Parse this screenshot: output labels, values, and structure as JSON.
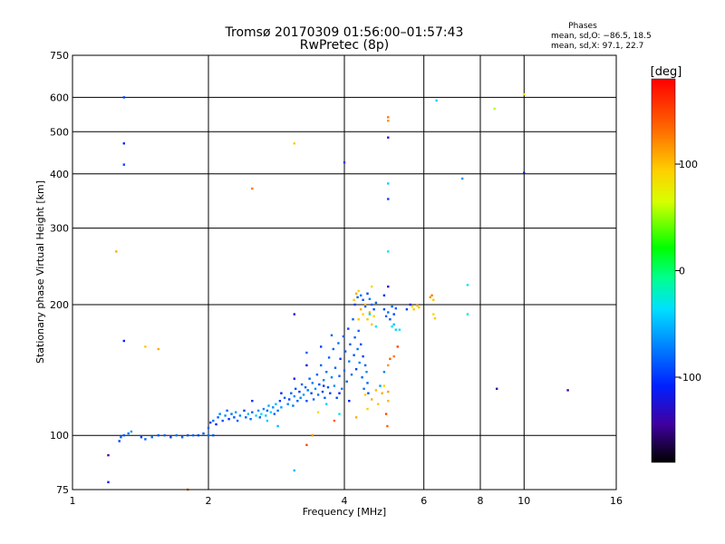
{
  "chart_data": {
    "type": "scatter",
    "title": "Tromsø 20170309 01:56:00–01:57:43",
    "subtitle": "RwPretec (8p)",
    "xlabel": "Frequency [MHz]",
    "ylabel": "Stationary phase Virtual Height [km]",
    "x_scale": "log",
    "y_scale": "log",
    "xlim": [
      1,
      16
    ],
    "ylim": [
      75,
      750
    ],
    "x_ticks": [
      1,
      2,
      4,
      6,
      8,
      10,
      16
    ],
    "x_tick_labels": [
      "1",
      "2",
      "4",
      "6",
      "8",
      "10",
      "16"
    ],
    "y_ticks": [
      75,
      100,
      200,
      300,
      400,
      500,
      600,
      750
    ],
    "y_tick_labels": [
      "75",
      "100",
      "200",
      "300",
      "400",
      "500",
      "600",
      "750"
    ],
    "grid": true,
    "stats": {
      "heading": "Phases",
      "line_o": "mean, sd,O: −86.5, 18.5",
      "line_x": "mean, sd,X:  97.1, 22.7"
    },
    "colorbar": {
      "label": "[deg]",
      "range": [
        -180,
        180
      ],
      "ticks": [
        100,
        0,
        -100
      ],
      "tick_labels": [
        "100",
        "0",
        "-100"
      ]
    },
    "points": [
      [
        1.2,
        78,
        -120
      ],
      [
        1.2,
        90,
        -150
      ],
      [
        1.27,
        97,
        -110
      ],
      [
        1.28,
        99,
        -100
      ],
      [
        1.3,
        100,
        -105
      ],
      [
        1.33,
        101,
        -95
      ],
      [
        1.35,
        102,
        -80
      ],
      [
        1.42,
        99,
        -110
      ],
      [
        1.45,
        98,
        -100
      ],
      [
        1.5,
        99,
        -95
      ],
      [
        1.55,
        100,
        -105
      ],
      [
        1.6,
        100,
        -100
      ],
      [
        1.65,
        99,
        -110
      ],
      [
        1.7,
        100,
        -95
      ],
      [
        1.75,
        99,
        -100
      ],
      [
        1.8,
        100,
        -105
      ],
      [
        1.85,
        100,
        -100
      ],
      [
        1.9,
        100,
        -110
      ],
      [
        1.95,
        101,
        -100
      ],
      [
        2.0,
        100,
        -95
      ],
      [
        2.05,
        100,
        -105
      ],
      [
        2.0,
        104,
        -100
      ],
      [
        2.02,
        107,
        -110
      ],
      [
        2.05,
        108,
        -95
      ],
      [
        2.08,
        106,
        -120
      ],
      [
        2.1,
        110,
        -100
      ],
      [
        2.12,
        112,
        -90
      ],
      [
        2.15,
        108,
        -105
      ],
      [
        2.18,
        111,
        -85
      ],
      [
        2.2,
        114,
        -100
      ],
      [
        2.22,
        109,
        -115
      ],
      [
        2.25,
        112,
        -95
      ],
      [
        2.28,
        110,
        -105
      ],
      [
        2.3,
        113,
        -80
      ],
      [
        2.32,
        108,
        -100
      ],
      [
        2.35,
        111,
        -90
      ],
      [
        2.4,
        114,
        -110
      ],
      [
        2.42,
        110,
        -100
      ],
      [
        2.45,
        112,
        -70
      ],
      [
        2.48,
        109,
        -95
      ],
      [
        2.5,
        113,
        -100
      ],
      [
        2.55,
        111,
        -60
      ],
      [
        2.58,
        114,
        -85
      ],
      [
        2.6,
        110,
        -100
      ],
      [
        2.62,
        112,
        -55
      ],
      [
        2.65,
        115,
        -90
      ],
      [
        2.68,
        111,
        -65
      ],
      [
        2.7,
        114,
        -100
      ],
      [
        2.72,
        117,
        -75
      ],
      [
        2.75,
        113,
        -60
      ],
      [
        2.78,
        116,
        -85
      ],
      [
        2.8,
        112,
        -100
      ],
      [
        2.82,
        118,
        -70
      ],
      [
        2.85,
        114,
        -95
      ],
      [
        2.88,
        120,
        -110
      ],
      [
        2.9,
        116,
        -80
      ],
      [
        2.95,
        122,
        -100
      ],
      [
        3.0,
        118,
        -90
      ],
      [
        3.02,
        121,
        -110
      ],
      [
        3.05,
        125,
        -100
      ],
      [
        3.08,
        117,
        -95
      ],
      [
        3.1,
        123,
        -85
      ],
      [
        3.12,
        128,
        -105
      ],
      [
        3.15,
        120,
        -100
      ],
      [
        3.18,
        126,
        -110
      ],
      [
        3.2,
        122,
        -90
      ],
      [
        3.22,
        131,
        -100
      ],
      [
        3.25,
        124,
        -80
      ],
      [
        3.28,
        129,
        -100
      ],
      [
        3.3,
        120,
        -105
      ],
      [
        3.32,
        127,
        -95
      ],
      [
        3.35,
        135,
        -100
      ],
      [
        3.38,
        125,
        -110
      ],
      [
        3.4,
        132,
        -90
      ],
      [
        3.42,
        121,
        -100
      ],
      [
        3.45,
        128,
        -85
      ],
      [
        3.48,
        138,
        -100
      ],
      [
        3.5,
        124,
        -95
      ],
      [
        3.52,
        131,
        -105
      ],
      [
        3.55,
        145,
        -100
      ],
      [
        3.58,
        126,
        -110
      ],
      [
        3.6,
        134,
        -90
      ],
      [
        3.62,
        122,
        -100
      ],
      [
        3.65,
        140,
        -95
      ],
      [
        3.68,
        129,
        -105
      ],
      [
        3.7,
        151,
        -100
      ],
      [
        3.72,
        125,
        -110
      ],
      [
        3.75,
        136,
        -90
      ],
      [
        3.78,
        158,
        -100
      ],
      [
        3.8,
        130,
        -85
      ],
      [
        3.82,
        143,
        -100
      ],
      [
        3.85,
        122,
        -105
      ],
      [
        3.88,
        163,
        -95
      ],
      [
        3.9,
        137,
        -100
      ],
      [
        3.92,
        150,
        -110
      ],
      [
        3.95,
        128,
        -90
      ],
      [
        3.98,
        169,
        -100
      ],
      [
        4.0,
        141,
        -95
      ],
      [
        4.02,
        156,
        -105
      ],
      [
        4.05,
        133,
        -100
      ],
      [
        4.08,
        176,
        -110
      ],
      [
        4.1,
        148,
        -90
      ],
      [
        4.12,
        162,
        -100
      ],
      [
        4.15,
        138,
        -95
      ],
      [
        4.18,
        185,
        -100
      ],
      [
        4.2,
        153,
        -105
      ],
      [
        4.22,
        168,
        -100
      ],
      [
        4.25,
        142,
        -110
      ],
      [
        4.28,
        158,
        -95
      ],
      [
        4.3,
        174,
        -100
      ],
      [
        4.32,
        147,
        -90
      ],
      [
        4.35,
        162,
        -105
      ],
      [
        4.38,
        136,
        -100
      ],
      [
        4.4,
        152,
        -110
      ],
      [
        4.42,
        128,
        -95
      ],
      [
        4.45,
        145,
        -100
      ],
      [
        4.48,
        140,
        -85
      ],
      [
        4.5,
        132,
        -100
      ],
      [
        4.52,
        125,
        -105
      ],
      [
        3.1,
        135,
        -120
      ],
      [
        3.3,
        145,
        -130
      ],
      [
        3.6,
        130,
        -115
      ],
      [
        3.9,
        125,
        -120
      ],
      [
        4.1,
        120,
        -125
      ],
      [
        2.5,
        120,
        -115
      ],
      [
        2.9,
        125,
        -120
      ],
      [
        3.3,
        155,
        -100
      ],
      [
        3.55,
        160,
        -110
      ],
      [
        3.75,
        170,
        -100
      ],
      [
        3.65,
        118,
        -60
      ],
      [
        3.9,
        112,
        -50
      ],
      [
        2.7,
        108,
        -65
      ],
      [
        2.85,
        105,
        -70
      ],
      [
        3.4,
        100,
        120
      ],
      [
        3.8,
        108,
        140
      ],
      [
        3.5,
        113,
        90
      ],
      [
        4.25,
        110,
        110
      ],
      [
        4.45,
        124,
        100
      ],
      [
        4.5,
        115,
        95
      ],
      [
        4.6,
        121,
        110
      ],
      [
        4.7,
        127,
        105
      ],
      [
        4.75,
        118,
        100
      ],
      [
        4.85,
        125,
        110
      ],
      [
        4.9,
        130,
        95
      ],
      [
        5.0,
        120,
        105
      ],
      [
        5.0,
        126,
        115
      ],
      [
        4.95,
        112,
        150
      ],
      [
        4.98,
        105,
        140
      ],
      [
        4.3,
        185,
        100
      ],
      [
        4.35,
        195,
        110
      ],
      [
        4.4,
        190,
        95
      ],
      [
        4.45,
        200,
        105
      ],
      [
        4.5,
        185,
        100
      ],
      [
        4.55,
        192,
        110
      ],
      [
        4.6,
        180,
        100
      ],
      [
        4.65,
        188,
        95
      ],
      [
        4.2,
        205,
        100
      ],
      [
        4.25,
        212,
        110
      ],
      [
        4.3,
        215,
        95
      ],
      [
        4.22,
        200,
        -110
      ],
      [
        4.28,
        208,
        -100
      ],
      [
        4.35,
        210,
        -95
      ],
      [
        4.4,
        205,
        -105
      ],
      [
        4.45,
        198,
        -100
      ],
      [
        4.5,
        212,
        -110
      ],
      [
        4.55,
        206,
        -95
      ],
      [
        4.6,
        200,
        -100
      ],
      [
        4.65,
        195,
        -105
      ],
      [
        4.7,
        202,
        -100
      ],
      [
        4.55,
        190,
        -60
      ],
      [
        4.7,
        178,
        -50
      ],
      [
        4.9,
        195,
        -110
      ],
      [
        4.95,
        188,
        -100
      ],
      [
        5.0,
        192,
        -95
      ],
      [
        5.05,
        185,
        -105
      ],
      [
        5.1,
        198,
        -100
      ],
      [
        5.15,
        190,
        -110
      ],
      [
        5.2,
        196,
        -100
      ],
      [
        5.15,
        180,
        -70
      ],
      [
        5.2,
        175,
        -60
      ],
      [
        5.3,
        175,
        -55
      ],
      [
        5.1,
        178,
        -50
      ],
      [
        5.5,
        195,
        -110
      ],
      [
        5.6,
        200,
        -130
      ],
      [
        5.65,
        198,
        90
      ],
      [
        5.7,
        195,
        100
      ],
      [
        5.8,
        199,
        110
      ],
      [
        5.85,
        197,
        100
      ],
      [
        6.2,
        208,
        120
      ],
      [
        6.25,
        210,
        130
      ],
      [
        6.3,
        205,
        100
      ],
      [
        6.3,
        190,
        95
      ],
      [
        6.35,
        186,
        100
      ],
      [
        4.9,
        210,
        -120
      ],
      [
        5.0,
        220,
        -140
      ],
      [
        4.6,
        220,
        90
      ],
      [
        5.05,
        150,
        140
      ],
      [
        5.15,
        152,
        130
      ],
      [
        5.25,
        160,
        150
      ],
      [
        5.0,
        145,
        120
      ],
      [
        4.8,
        130,
        -80
      ],
      [
        4.9,
        140,
        -90
      ],
      [
        1.3,
        600,
        -110
      ],
      [
        1.3,
        470,
        -120
      ],
      [
        1.3,
        420,
        -110
      ],
      [
        1.25,
        265,
        110
      ],
      [
        1.3,
        165,
        -120
      ],
      [
        1.45,
        160,
        100
      ],
      [
        1.55,
        158,
        110
      ],
      [
        1.8,
        75,
        130
      ],
      [
        2.5,
        370,
        130
      ],
      [
        3.1,
        470,
        100
      ],
      [
        3.1,
        190,
        -130
      ],
      [
        3.1,
        83,
        -70
      ],
      [
        3.3,
        95,
        150
      ],
      [
        4.0,
        425,
        -110
      ],
      [
        5.0,
        530,
        120
      ],
      [
        5.0,
        540,
        130
      ],
      [
        5.0,
        485,
        -130
      ],
      [
        5.0,
        380,
        -60
      ],
      [
        5.0,
        350,
        -110
      ],
      [
        5.0,
        265,
        -50
      ],
      [
        6.4,
        590,
        -60
      ],
      [
        7.3,
        390,
        -80
      ],
      [
        7.5,
        222,
        -50
      ],
      [
        7.5,
        190,
        -40
      ],
      [
        8.6,
        565,
        50
      ],
      [
        8.7,
        128,
        -150
      ],
      [
        10.0,
        610,
        70
      ],
      [
        10.0,
        402,
        -130
      ],
      [
        12.5,
        127,
        -150
      ]
    ]
  }
}
